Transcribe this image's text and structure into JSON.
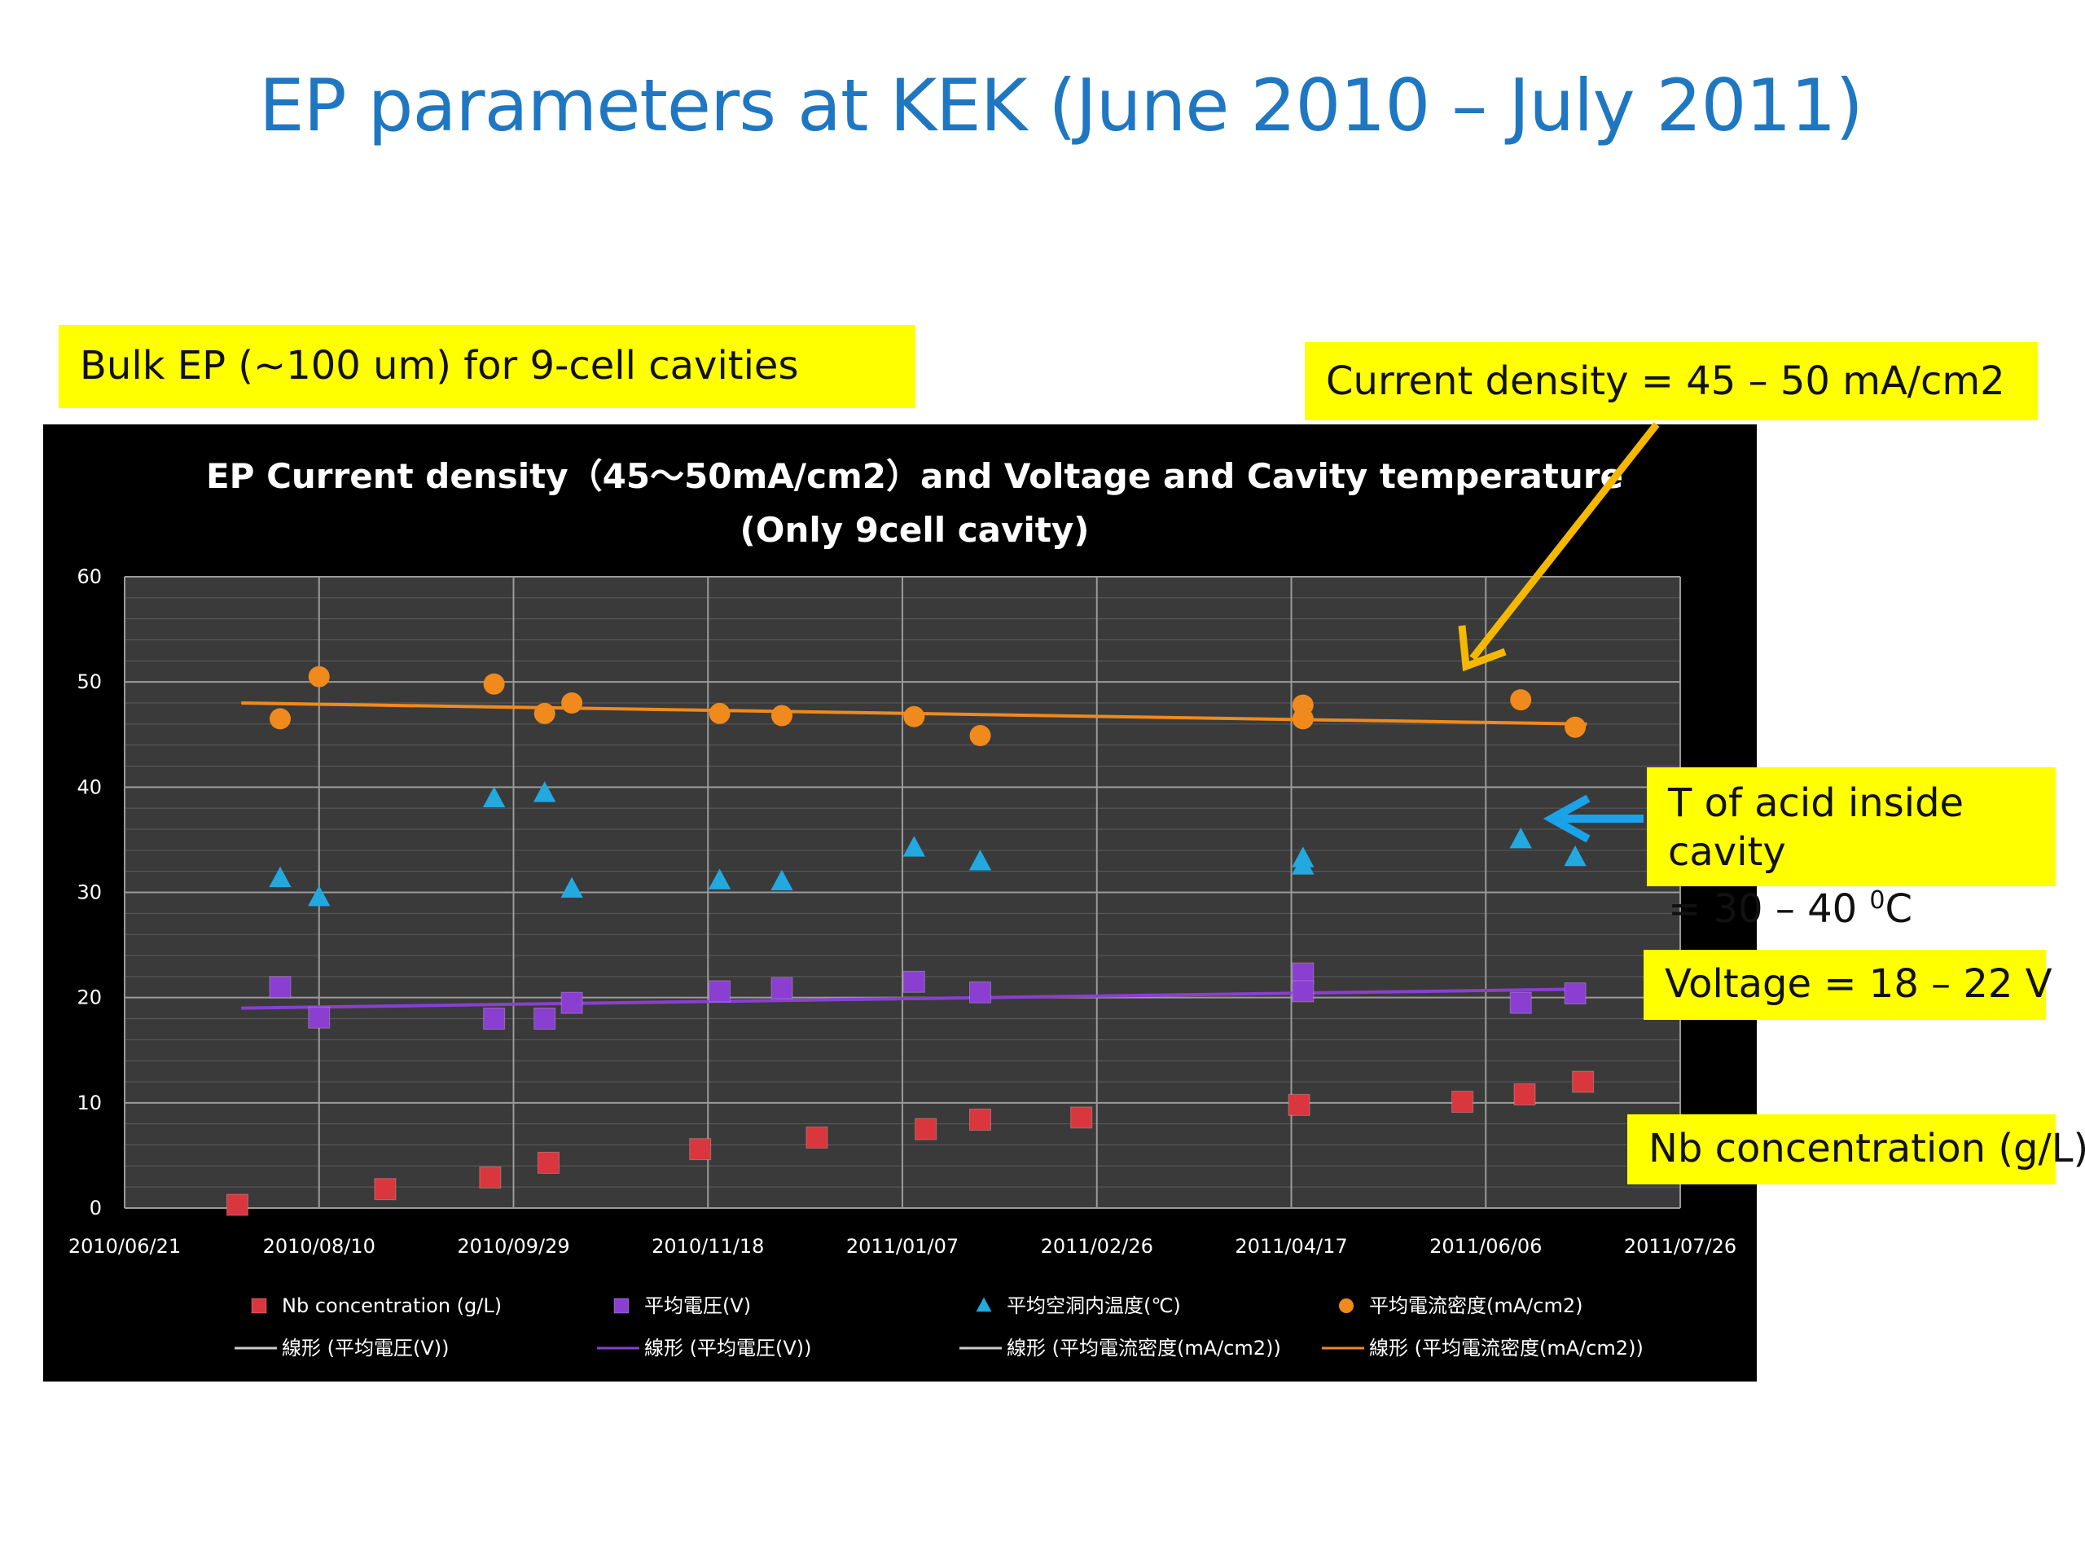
{
  "slide": {
    "title": "EP parameters at KEK (June 2010 – July 2011)"
  },
  "callouts": {
    "bulk": "Bulk EP (~100 um) for 9-cell cavities",
    "current": "Current density = 45 – 50 mA/cm2",
    "temp_line1": "T of acid inside cavity",
    "temp_line2": "= 30 – 40 ",
    "temp_sup": "0",
    "temp_unit": "C",
    "voltage": "Voltage = 18 – 22 V",
    "nb": "Nb concentration (g/L)"
  },
  "colors": {
    "slide_title": "#1f77c2",
    "callout_bg": "#ffff00",
    "arrow_current": "#f5b800",
    "arrow_temp": "#1aa3e8",
    "chart_bg": "#000000",
    "plot_bg": "#3a3a3a",
    "nb": "#d9363e",
    "voltage": "#8a3fd1",
    "temperature": "#22a9e0",
    "current": "#f08a1c"
  },
  "chart_data": {
    "type": "scatter",
    "title": "EP Current density（45～50mA/cm2）and Voltage and Cavity temperature",
    "subtitle": "(Only 9cell cavity)",
    "x_ticks": [
      "2010/06/21",
      "2010/08/10",
      "2010/09/29",
      "2010/11/18",
      "2011/01/07",
      "2011/02/26",
      "2011/04/17",
      "2011/06/06",
      "2011/07/26"
    ],
    "xlim": [
      "2010-06-21",
      "2011-07-26"
    ],
    "y_ticks": [
      "0",
      "10",
      "20",
      "30",
      "40",
      "50",
      "60"
    ],
    "ylim": [
      0,
      60
    ],
    "grid": true,
    "legend_position": "bottom",
    "series": [
      {
        "name": "Nb concentration (g/L)",
        "marker": "square",
        "color": "#d9363e",
        "points": [
          {
            "x": "2010-07-20",
            "y": 0.3
          },
          {
            "x": "2010-08-27",
            "y": 1.8
          },
          {
            "x": "2010-09-23",
            "y": 2.9
          },
          {
            "x": "2010-10-08",
            "y": 4.3
          },
          {
            "x": "2010-11-16",
            "y": 5.6
          },
          {
            "x": "2010-12-16",
            "y": 6.7
          },
          {
            "x": "2011-01-13",
            "y": 7.5
          },
          {
            "x": "2011-01-27",
            "y": 8.4
          },
          {
            "x": "2011-02-22",
            "y": 8.6
          },
          {
            "x": "2011-04-19",
            "y": 9.8
          },
          {
            "x": "2011-05-31",
            "y": 10.1
          },
          {
            "x": "2011-06-16",
            "y": 10.8
          },
          {
            "x": "2011-07-01",
            "y": 12.0
          }
        ]
      },
      {
        "name": "平均電圧(V)",
        "marker": "square",
        "color": "#8a3fd1",
        "points": [
          {
            "x": "2010-07-31",
            "y": 21.0
          },
          {
            "x": "2010-08-10",
            "y": 18.1
          },
          {
            "x": "2010-09-24",
            "y": 18.0
          },
          {
            "x": "2010-10-07",
            "y": 18.0
          },
          {
            "x": "2010-10-14",
            "y": 19.5
          },
          {
            "x": "2010-11-21",
            "y": 20.6
          },
          {
            "x": "2010-12-07",
            "y": 20.9
          },
          {
            "x": "2011-01-10",
            "y": 21.5
          },
          {
            "x": "2011-01-27",
            "y": 20.5
          },
          {
            "x": "2011-04-20",
            "y": 22.3
          },
          {
            "x": "2011-04-20",
            "y": 20.6
          },
          {
            "x": "2011-06-15",
            "y": 19.5
          },
          {
            "x": "2011-06-29",
            "y": 20.4
          }
        ]
      },
      {
        "name": "平均空洞内温度(℃)",
        "marker": "triangle",
        "color": "#22a9e0",
        "points": [
          {
            "x": "2010-07-31",
            "y": 31.3
          },
          {
            "x": "2010-08-10",
            "y": 29.5
          },
          {
            "x": "2010-09-24",
            "y": 38.9
          },
          {
            "x": "2010-10-07",
            "y": 39.4
          },
          {
            "x": "2010-10-14",
            "y": 30.3
          },
          {
            "x": "2010-11-21",
            "y": 31.1
          },
          {
            "x": "2010-12-07",
            "y": 31.0
          },
          {
            "x": "2011-01-10",
            "y": 34.2
          },
          {
            "x": "2011-01-27",
            "y": 32.9
          },
          {
            "x": "2011-04-20",
            "y": 33.2
          },
          {
            "x": "2011-04-20",
            "y": 32.5
          },
          {
            "x": "2011-06-15",
            "y": 35.0
          },
          {
            "x": "2011-06-29",
            "y": 33.3
          }
        ]
      },
      {
        "name": "平均電流密度(mA/cm2)",
        "marker": "circle",
        "color": "#f08a1c",
        "points": [
          {
            "x": "2010-07-31",
            "y": 46.5
          },
          {
            "x": "2010-08-10",
            "y": 50.5
          },
          {
            "x": "2010-09-24",
            "y": 49.8
          },
          {
            "x": "2010-10-07",
            "y": 47.0
          },
          {
            "x": "2010-10-14",
            "y": 48.0
          },
          {
            "x": "2010-11-21",
            "y": 47.0
          },
          {
            "x": "2010-12-07",
            "y": 46.8
          },
          {
            "x": "2011-01-10",
            "y": 46.7
          },
          {
            "x": "2011-01-27",
            "y": 44.9
          },
          {
            "x": "2011-04-20",
            "y": 47.8
          },
          {
            "x": "2011-04-20",
            "y": 46.5
          },
          {
            "x": "2011-06-15",
            "y": 48.3
          },
          {
            "x": "2011-06-29",
            "y": 45.7
          }
        ]
      }
    ],
    "trendlines": [
      {
        "name": "線形 (平均電圧(V))",
        "color": "#cccccc",
        "visible": false
      },
      {
        "name": "線形 (平均電圧(V))",
        "color": "#8a3fd1",
        "visible": true,
        "from": {
          "x": "2010-07-21",
          "y": 19.0
        },
        "to": {
          "x": "2011-06-30",
          "y": 20.8
        }
      },
      {
        "name": "線形 (平均電流密度(mA/cm2))",
        "color": "#cccccc",
        "visible": false
      },
      {
        "name": "線形 (平均電流密度(mA/cm2))",
        "color": "#f08a1c",
        "visible": true,
        "from": {
          "x": "2010-07-21",
          "y": 48.0
        },
        "to": {
          "x": "2011-07-02",
          "y": 46.0
        }
      }
    ]
  }
}
